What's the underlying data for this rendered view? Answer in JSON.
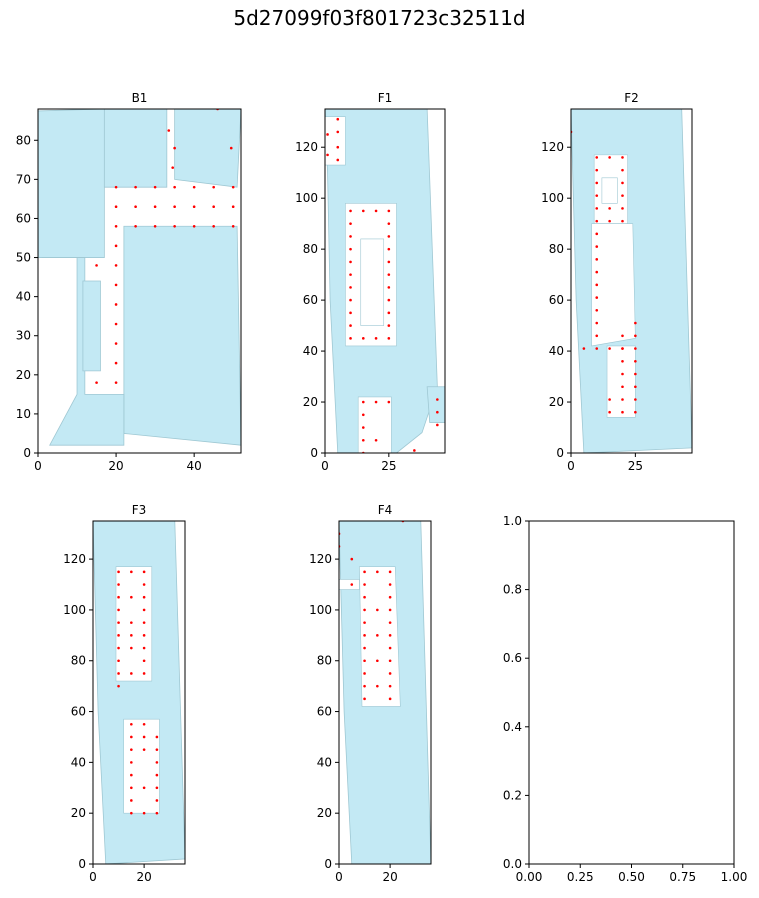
{
  "figure_title": "5d27099f03f801723c32511d",
  "colors": {
    "room_fill": "#c3e9f4",
    "room_edge": "#9fc8d3",
    "wall": "#777777",
    "point": "#ff0000",
    "axis": "#000000"
  },
  "chart_data": [
    {
      "type": "scatter",
      "title": "B1",
      "xlim": [
        0,
        52
      ],
      "ylim": [
        0,
        88
      ],
      "xticks": [
        0,
        20,
        40
      ],
      "yticks": [
        0,
        10,
        20,
        30,
        40,
        50,
        60,
        70,
        80
      ],
      "rooms": [
        [
          [
            0,
            87.5
          ],
          [
            17,
            88
          ],
          [
            17,
            50
          ],
          [
            0,
            50
          ]
        ],
        [
          [
            17,
            88
          ],
          [
            33,
            88
          ],
          [
            33,
            68
          ],
          [
            17,
            68
          ]
        ],
        [
          [
            35,
            88
          ],
          [
            52,
            88
          ],
          [
            51,
            68
          ],
          [
            35,
            70
          ]
        ],
        [
          [
            22,
            58
          ],
          [
            51,
            58
          ],
          [
            52,
            2
          ],
          [
            22,
            5
          ]
        ],
        [
          [
            1,
            50
          ],
          [
            10,
            50
          ],
          [
            10,
            15
          ],
          [
            3,
            2
          ],
          [
            22,
            2
          ],
          [
            22,
            15
          ],
          [
            12,
            15
          ],
          [
            12,
            50
          ]
        ],
        [
          [
            11.5,
            44
          ],
          [
            16,
            44
          ],
          [
            16,
            21
          ],
          [
            11.5,
            21
          ]
        ]
      ],
      "points": [
        [
          33.5,
          82.5
        ],
        [
          35,
          78
        ],
        [
          34.5,
          73
        ],
        [
          46,
          88
        ],
        [
          49.5,
          78
        ],
        [
          20,
          68
        ],
        [
          25,
          68
        ],
        [
          30,
          68
        ],
        [
          35,
          68
        ],
        [
          40,
          68
        ],
        [
          45,
          68
        ],
        [
          50,
          68
        ],
        [
          20,
          63
        ],
        [
          25,
          63
        ],
        [
          30,
          63
        ],
        [
          35,
          63
        ],
        [
          40,
          63
        ],
        [
          45,
          63
        ],
        [
          50,
          63
        ],
        [
          20,
          58
        ],
        [
          25,
          58
        ],
        [
          30,
          58
        ],
        [
          35,
          58
        ],
        [
          40,
          58
        ],
        [
          45,
          58
        ],
        [
          50,
          58
        ],
        [
          20,
          53
        ],
        [
          20,
          48
        ],
        [
          15,
          48
        ],
        [
          20,
          43
        ],
        [
          20,
          38
        ],
        [
          20,
          33
        ],
        [
          20,
          28
        ],
        [
          20,
          23
        ],
        [
          20,
          18
        ],
        [
          15,
          18
        ]
      ]
    },
    {
      "type": "scatter",
      "title": "F1",
      "xlim": [
        0,
        47
      ],
      "ylim": [
        0,
        135
      ],
      "xticks": [
        0,
        25
      ],
      "yticks": [
        0,
        20,
        40,
        60,
        80,
        100,
        120
      ],
      "rooms": [
        [
          [
            0,
            135
          ],
          [
            40,
            135
          ],
          [
            44,
            26
          ],
          [
            38,
            8
          ],
          [
            28,
            0
          ],
          [
            5,
            0
          ],
          [
            2,
            60
          ],
          [
            1,
            110
          ]
        ],
        [
          [
            40,
            26
          ],
          [
            47,
            26
          ],
          [
            47,
            12
          ],
          [
            41,
            12
          ]
        ]
      ],
      "holes": [
        [
          [
            8,
            98
          ],
          [
            28,
            98
          ],
          [
            28,
            42
          ],
          [
            8,
            42
          ]
        ],
        [
          [
            14,
            84
          ],
          [
            23,
            84
          ],
          [
            23,
            50
          ],
          [
            14,
            50
          ]
        ],
        [
          [
            13,
            22
          ],
          [
            26,
            22
          ],
          [
            26,
            0
          ],
          [
            13,
            0
          ]
        ],
        [
          [
            0,
            132
          ],
          [
            8,
            132
          ],
          [
            8,
            113
          ],
          [
            0,
            113
          ]
        ]
      ],
      "points": [
        [
          5,
          131
        ],
        [
          5,
          126
        ],
        [
          5,
          120
        ],
        [
          5,
          115
        ],
        [
          1,
          125
        ],
        [
          1,
          117
        ],
        [
          10,
          95
        ],
        [
          15,
          95
        ],
        [
          20,
          95
        ],
        [
          25,
          95
        ],
        [
          10,
          90
        ],
        [
          25,
          90
        ],
        [
          10,
          85
        ],
        [
          25,
          85
        ],
        [
          10,
          80
        ],
        [
          25,
          80
        ],
        [
          10,
          75
        ],
        [
          25,
          75
        ],
        [
          10,
          70
        ],
        [
          25,
          70
        ],
        [
          10,
          65
        ],
        [
          25,
          65
        ],
        [
          10,
          60
        ],
        [
          25,
          60
        ],
        [
          10,
          55
        ],
        [
          25,
          55
        ],
        [
          10,
          50
        ],
        [
          25,
          50
        ],
        [
          10,
          45
        ],
        [
          15,
          45
        ],
        [
          20,
          45
        ],
        [
          25,
          45
        ],
        [
          15,
          20
        ],
        [
          20,
          20
        ],
        [
          25,
          20
        ],
        [
          15,
          15
        ],
        [
          15,
          10
        ],
        [
          15,
          5
        ],
        [
          20,
          5
        ],
        [
          15,
          0
        ],
        [
          44,
          21
        ],
        [
          44,
          16
        ],
        [
          44,
          11
        ],
        [
          35,
          1
        ]
      ]
    },
    {
      "type": "scatter",
      "title": "F2",
      "xlim": [
        0,
        47
      ],
      "ylim": [
        0,
        135
      ],
      "xticks": [
        0,
        25
      ],
      "yticks": [
        0,
        20,
        40,
        60,
        80,
        100,
        120
      ],
      "rooms": [
        [
          [
            0,
            135
          ],
          [
            43,
            135
          ],
          [
            47,
            2
          ],
          [
            5,
            0
          ],
          [
            2,
            60
          ]
        ]
      ],
      "holes": [
        [
          [
            9,
            117
          ],
          [
            22,
            117
          ],
          [
            22,
            90
          ],
          [
            9,
            90
          ]
        ],
        [
          [
            12,
            108
          ],
          [
            18,
            108
          ],
          [
            18,
            98
          ],
          [
            12,
            98
          ]
        ],
        [
          [
            8,
            90
          ],
          [
            24,
            90
          ],
          [
            25,
            45
          ],
          [
            8,
            42
          ]
        ],
        [
          [
            14,
            42
          ],
          [
            25,
            42
          ],
          [
            25,
            14
          ],
          [
            14,
            14
          ]
        ]
      ],
      "points": [
        [
          10,
          116
        ],
        [
          15,
          116
        ],
        [
          20,
          116
        ],
        [
          10,
          111
        ],
        [
          20,
          111
        ],
        [
          10,
          106
        ],
        [
          20,
          106
        ],
        [
          10,
          101
        ],
        [
          20,
          101
        ],
        [
          10,
          96
        ],
        [
          15,
          96
        ],
        [
          20,
          96
        ],
        [
          10,
          91
        ],
        [
          15,
          91
        ],
        [
          20,
          91
        ],
        [
          10,
          86
        ],
        [
          10,
          81
        ],
        [
          10,
          76
        ],
        [
          10,
          71
        ],
        [
          10,
          66
        ],
        [
          10,
          61
        ],
        [
          10,
          56
        ],
        [
          10,
          51
        ],
        [
          10,
          46
        ],
        [
          10,
          41
        ],
        [
          5,
          41
        ],
        [
          15,
          41
        ],
        [
          20,
          41
        ],
        [
          25,
          51
        ],
        [
          20,
          46
        ],
        [
          25,
          46
        ],
        [
          20,
          41
        ],
        [
          25,
          41
        ],
        [
          20,
          36
        ],
        [
          25,
          36
        ],
        [
          20,
          31
        ],
        [
          25,
          31
        ],
        [
          20,
          26
        ],
        [
          25,
          26
        ],
        [
          15,
          21
        ],
        [
          20,
          21
        ],
        [
          25,
          21
        ],
        [
          15,
          16
        ],
        [
          20,
          16
        ],
        [
          25,
          16
        ],
        [
          0,
          126
        ]
      ]
    },
    {
      "type": "scatter",
      "title": "F3",
      "xlim": [
        0,
        36
      ],
      "ylim": [
        0,
        135
      ],
      "xticks": [
        0,
        20
      ],
      "yticks": [
        0,
        20,
        40,
        60,
        80,
        100,
        120
      ],
      "rooms": [
        [
          [
            0,
            135
          ],
          [
            32,
            135
          ],
          [
            36,
            2
          ],
          [
            5,
            0
          ],
          [
            2,
            60
          ]
        ]
      ],
      "holes": [
        [
          [
            9,
            117
          ],
          [
            23,
            117
          ],
          [
            23,
            72
          ],
          [
            9,
            72
          ]
        ],
        [
          [
            12,
            57
          ],
          [
            26,
            57
          ],
          [
            26,
            20
          ],
          [
            12,
            20
          ]
        ]
      ],
      "points": [
        [
          10,
          115
        ],
        [
          15,
          115
        ],
        [
          20,
          115
        ],
        [
          10,
          110
        ],
        [
          20,
          110
        ],
        [
          10,
          105
        ],
        [
          15,
          105
        ],
        [
          20,
          105
        ],
        [
          10,
          100
        ],
        [
          20,
          100
        ],
        [
          10,
          95
        ],
        [
          15,
          95
        ],
        [
          20,
          95
        ],
        [
          10,
          90
        ],
        [
          15,
          90
        ],
        [
          20,
          90
        ],
        [
          10,
          85
        ],
        [
          15,
          85
        ],
        [
          20,
          85
        ],
        [
          10,
          80
        ],
        [
          20,
          80
        ],
        [
          10,
          75
        ],
        [
          15,
          75
        ],
        [
          20,
          75
        ],
        [
          10,
          70
        ],
        [
          15,
          55
        ],
        [
          20,
          55
        ],
        [
          15,
          50
        ],
        [
          20,
          50
        ],
        [
          25,
          50
        ],
        [
          15,
          45
        ],
        [
          20,
          45
        ],
        [
          25,
          45
        ],
        [
          15,
          40
        ],
        [
          25,
          40
        ],
        [
          15,
          35
        ],
        [
          25,
          35
        ],
        [
          15,
          30
        ],
        [
          20,
          30
        ],
        [
          25,
          30
        ],
        [
          15,
          25
        ],
        [
          25,
          25
        ],
        [
          15,
          20
        ],
        [
          20,
          20
        ],
        [
          25,
          20
        ]
      ]
    },
    {
      "type": "scatter",
      "title": "F4",
      "xlim": [
        0,
        36
      ],
      "ylim": [
        0,
        135
      ],
      "xticks": [
        0,
        20
      ],
      "yticks": [
        0,
        20,
        40,
        60,
        80,
        100,
        120
      ],
      "rooms": [
        [
          [
            0,
            135
          ],
          [
            32,
            135
          ],
          [
            36,
            0
          ],
          [
            5,
            0
          ],
          [
            2,
            60
          ]
        ]
      ],
      "holes": [
        [
          [
            8,
            117
          ],
          [
            22,
            117
          ],
          [
            24,
            62
          ],
          [
            9,
            62
          ]
        ],
        [
          [
            0,
            112
          ],
          [
            8,
            112
          ],
          [
            8,
            108
          ],
          [
            0,
            108
          ]
        ]
      ],
      "points": [
        [
          5,
          120
        ],
        [
          10,
          115
        ],
        [
          15,
          115
        ],
        [
          20,
          115
        ],
        [
          5,
          110
        ],
        [
          10,
          110
        ],
        [
          20,
          110
        ],
        [
          10,
          105
        ],
        [
          20,
          105
        ],
        [
          10,
          100
        ],
        [
          15,
          100
        ],
        [
          20,
          100
        ],
        [
          10,
          95
        ],
        [
          20,
          95
        ],
        [
          10,
          90
        ],
        [
          15,
          90
        ],
        [
          20,
          90
        ],
        [
          10,
          85
        ],
        [
          20,
          85
        ],
        [
          10,
          80
        ],
        [
          15,
          80
        ],
        [
          20,
          80
        ],
        [
          10,
          75
        ],
        [
          20,
          75
        ],
        [
          10,
          70
        ],
        [
          15,
          70
        ],
        [
          20,
          70
        ],
        [
          10,
          65
        ],
        [
          20,
          65
        ],
        [
          25,
          135
        ],
        [
          0,
          130
        ],
        [
          0,
          125
        ]
      ]
    },
    {
      "type": "scatter",
      "title": "",
      "xlim": [
        0,
        1
      ],
      "ylim": [
        0,
        1
      ],
      "xticks": [
        0,
        0.25,
        0.5,
        0.75,
        1.0
      ],
      "yticks": [
        0,
        0.2,
        0.4,
        0.6,
        0.8,
        1.0
      ],
      "xtick_labels": [
        "0.00",
        "0.25",
        "0.50",
        "0.75",
        "1.00"
      ],
      "ytick_labels": [
        "0.0",
        "0.2",
        "0.4",
        "0.6",
        "0.8",
        "1.0"
      ],
      "rooms": [],
      "points": []
    }
  ]
}
